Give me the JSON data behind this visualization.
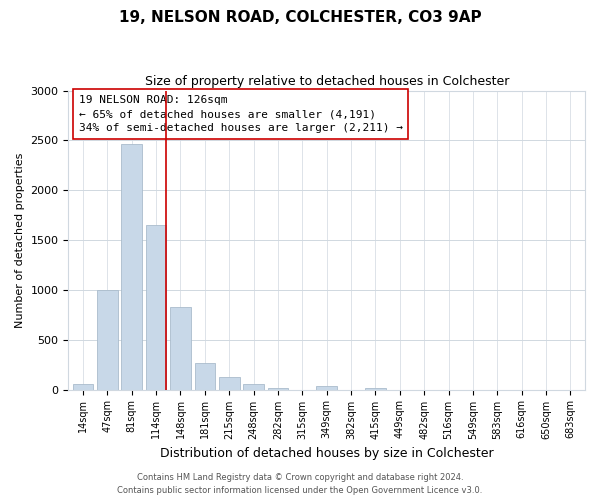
{
  "title": "19, NELSON ROAD, COLCHESTER, CO3 9AP",
  "subtitle": "Size of property relative to detached houses in Colchester",
  "xlabel": "Distribution of detached houses by size in Colchester",
  "ylabel": "Number of detached properties",
  "bar_labels": [
    "14sqm",
    "47sqm",
    "81sqm",
    "114sqm",
    "148sqm",
    "181sqm",
    "215sqm",
    "248sqm",
    "282sqm",
    "315sqm",
    "349sqm",
    "382sqm",
    "415sqm",
    "449sqm",
    "482sqm",
    "516sqm",
    "549sqm",
    "583sqm",
    "616sqm",
    "650sqm",
    "683sqm"
  ],
  "bar_values": [
    55,
    1000,
    2460,
    1650,
    830,
    265,
    125,
    55,
    15,
    0,
    40,
    0,
    20,
    0,
    0,
    0,
    0,
    0,
    0,
    0,
    0
  ],
  "bar_color": "#c8d8e8",
  "bar_edge_color": "#aabccc",
  "highlight_line_color": "#cc0000",
  "annotation_title": "19 NELSON ROAD: 126sqm",
  "annotation_line1": "← 65% of detached houses are smaller (4,191)",
  "annotation_line2": "34% of semi-detached houses are larger (2,211) →",
  "annotation_box_color": "#ffffff",
  "annotation_box_edge": "#cc0000",
  "ylim": [
    0,
    3000
  ],
  "yticks": [
    0,
    500,
    1000,
    1500,
    2000,
    2500,
    3000
  ],
  "footer1": "Contains HM Land Registry data © Crown copyright and database right 2024.",
  "footer2": "Contains public sector information licensed under the Open Government Licence v3.0.",
  "bg_color": "#ffffff",
  "grid_color": "#d0d8e0"
}
